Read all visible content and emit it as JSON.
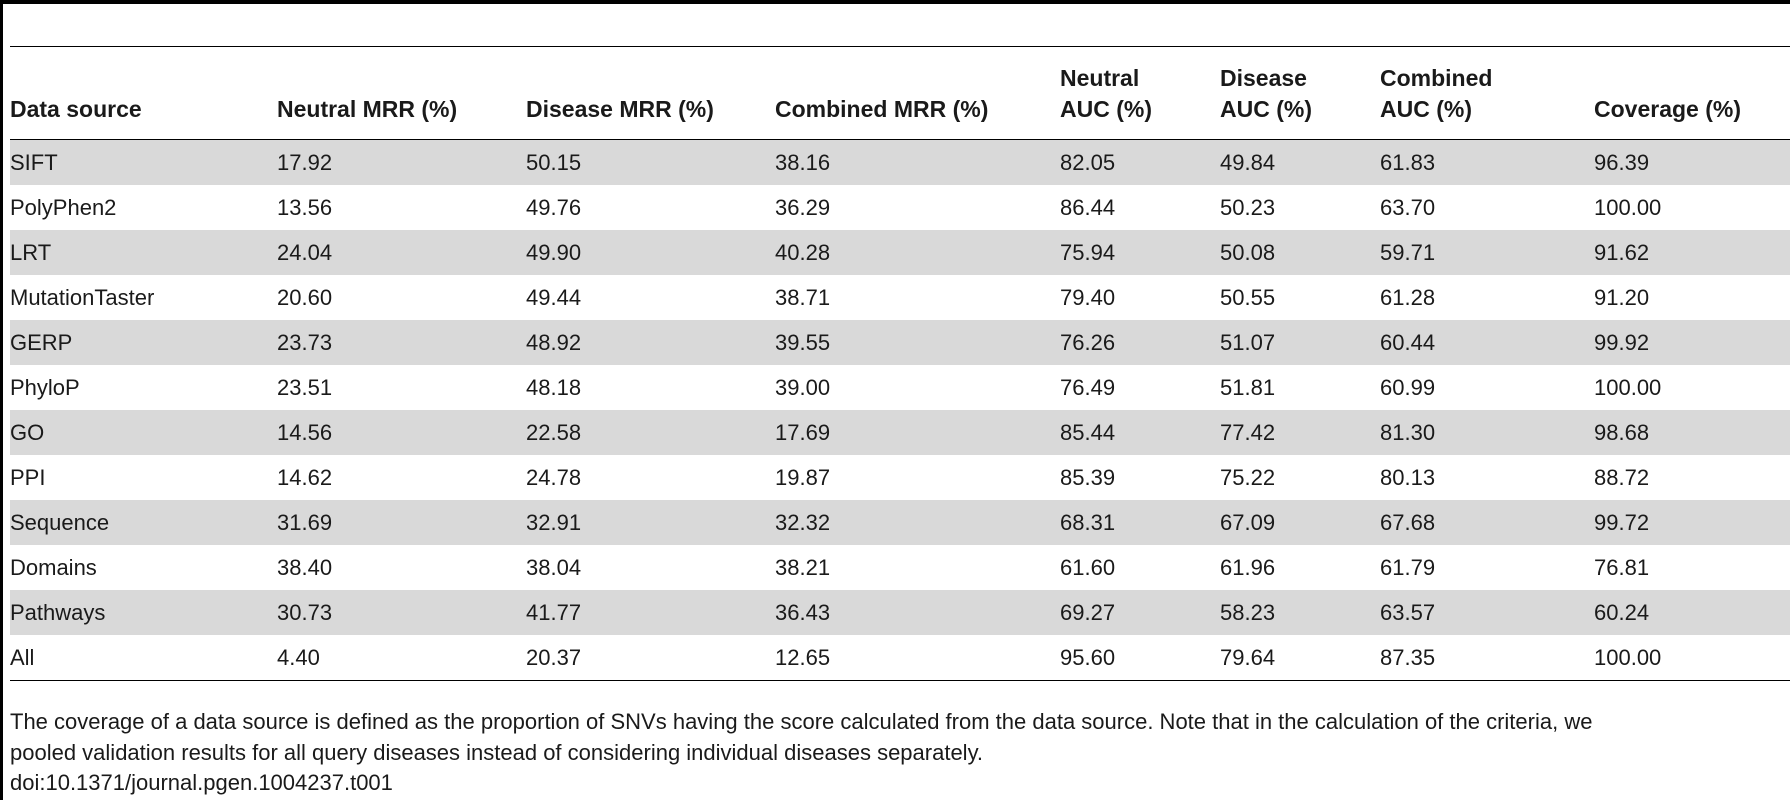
{
  "table": {
    "headers": [
      [
        "Data source"
      ],
      [
        "Neutral MRR (%)"
      ],
      [
        "Disease MRR (%)"
      ],
      [
        "Combined MRR (%)"
      ],
      [
        "Neutral",
        "AUC (%)"
      ],
      [
        "Disease",
        "AUC (%)"
      ],
      [
        "Combined",
        "AUC (%)"
      ],
      [
        "Coverage (%)"
      ]
    ],
    "rows": [
      [
        "SIFT",
        "17.92",
        "50.15",
        "38.16",
        "82.05",
        "49.84",
        "61.83",
        "96.39"
      ],
      [
        "PolyPhen2",
        "13.56",
        "49.76",
        "36.29",
        "86.44",
        "50.23",
        "63.70",
        "100.00"
      ],
      [
        "LRT",
        "24.04",
        "49.90",
        "40.28",
        "75.94",
        "50.08",
        "59.71",
        "91.62"
      ],
      [
        "MutationTaster",
        "20.60",
        "49.44",
        "38.71",
        "79.40",
        "50.55",
        "61.28",
        "91.20"
      ],
      [
        "GERP",
        "23.73",
        "48.92",
        "39.55",
        "76.26",
        "51.07",
        "60.44",
        "99.92"
      ],
      [
        "PhyloP",
        "23.51",
        "48.18",
        "39.00",
        "76.49",
        "51.81",
        "60.99",
        "100.00"
      ],
      [
        "GO",
        "14.56",
        "22.58",
        "17.69",
        "85.44",
        "77.42",
        "81.30",
        "98.68"
      ],
      [
        "PPI",
        "14.62",
        "24.78",
        "19.87",
        "85.39",
        "75.22",
        "80.13",
        "88.72"
      ],
      [
        "Sequence",
        "31.69",
        "32.91",
        "32.32",
        "68.31",
        "67.09",
        "67.68",
        "99.72"
      ],
      [
        "Domains",
        "38.40",
        "38.04",
        "38.21",
        "61.60",
        "61.96",
        "61.79",
        "76.81"
      ],
      [
        "Pathways",
        "30.73",
        "41.77",
        "36.43",
        "69.27",
        "58.23",
        "63.57",
        "60.24"
      ],
      [
        "All",
        "4.40",
        "20.37",
        "12.65",
        "95.60",
        "79.64",
        "87.35",
        "100.00"
      ]
    ],
    "striped_row_color": "#d9d9d9"
  },
  "footnote": {
    "lines": [
      "The coverage of a data source is defined as the proportion of SNVs having the score calculated from the data source. Note that in the calculation of the criteria, we",
      "pooled validation results for all query diseases instead of considering individual diseases separately."
    ],
    "doi": "doi:10.1371/journal.pgen.1004237.t001"
  }
}
